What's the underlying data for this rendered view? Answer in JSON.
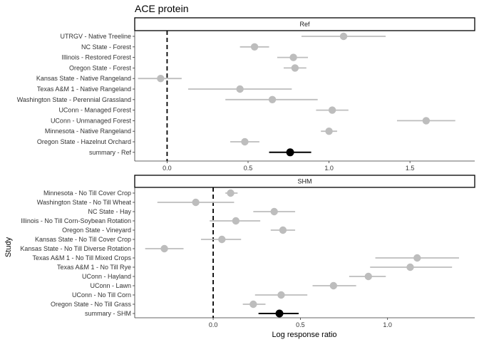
{
  "chart_data": {
    "type": "forest",
    "title": "ACE protein",
    "xlabel": "Log response ratio",
    "ylabel": "Study",
    "grid": false,
    "reference_line": 0,
    "colors": {
      "study": "#bdbdbd",
      "summary": "#000000",
      "strip_fill": "#ffffff",
      "strip_border": "#000000"
    },
    "panels": [
      {
        "name": "Ref",
        "xlim": [
          -0.2,
          1.9
        ],
        "xticks": [
          0.0,
          0.5,
          1.0,
          1.5
        ],
        "xtick_labels": [
          "0.0",
          "0.5",
          "1.0",
          "1.5"
        ],
        "studies": [
          {
            "label": "UTRGV - Native Treeline",
            "estimate": 1.09,
            "lower": 0.83,
            "upper": 1.35
          },
          {
            "label": "NC State - Forest",
            "estimate": 0.54,
            "lower": 0.45,
            "upper": 0.63
          },
          {
            "label": "Illinois - Restored Forest",
            "estimate": 0.78,
            "lower": 0.68,
            "upper": 0.87
          },
          {
            "label": "Oregon State - Forest",
            "estimate": 0.79,
            "lower": 0.72,
            "upper": 0.86
          },
          {
            "label": "Kansas State - Native Rangeland",
            "estimate": -0.04,
            "lower": -0.18,
            "upper": 0.09
          },
          {
            "label": "Texas A&M 1 - Native Rangeland",
            "estimate": 0.45,
            "lower": 0.13,
            "upper": 0.77
          },
          {
            "label": "Washington State - Perennial Grassland",
            "estimate": 0.65,
            "lower": 0.36,
            "upper": 0.93
          },
          {
            "label": "UConn - Managed Forest",
            "estimate": 1.02,
            "lower": 0.92,
            "upper": 1.12
          },
          {
            "label": "UConn - Unmanaged Forest",
            "estimate": 1.6,
            "lower": 1.42,
            "upper": 1.78
          },
          {
            "label": "Minnesota - Native Rangeland",
            "estimate": 1.0,
            "lower": 0.95,
            "upper": 1.05
          },
          {
            "label": "Oregon State - Hazelnut Orchard",
            "estimate": 0.48,
            "lower": 0.39,
            "upper": 0.57
          },
          {
            "label": "summary - Ref",
            "estimate": 0.76,
            "lower": 0.63,
            "upper": 0.89,
            "summary": true
          }
        ]
      },
      {
        "name": "SHM",
        "xlim": [
          -0.45,
          1.5
        ],
        "xticks": [
          0.0,
          0.5,
          1.0
        ],
        "xtick_labels": [
          "0.0",
          "0.5",
          "1.0"
        ],
        "studies": [
          {
            "label": "Minnesota - No Till Cover Crop",
            "estimate": 0.1,
            "lower": 0.07,
            "upper": 0.14
          },
          {
            "label": "Washington State - No Till Wheat",
            "estimate": -0.1,
            "lower": -0.32,
            "upper": 0.12
          },
          {
            "label": "NC State - Hay",
            "estimate": 0.35,
            "lower": 0.23,
            "upper": 0.47
          },
          {
            "label": "Illinois - No Till Corn-Soybean Rotation",
            "estimate": 0.13,
            "lower": -0.02,
            "upper": 0.27
          },
          {
            "label": "Oregon State - Vineyard",
            "estimate": 0.4,
            "lower": 0.33,
            "upper": 0.47
          },
          {
            "label": "Kansas State - No Till Cover Crop",
            "estimate": 0.05,
            "lower": -0.07,
            "upper": 0.16
          },
          {
            "label": "Kansas State - No Till Diverse Rotation",
            "estimate": -0.28,
            "lower": -0.39,
            "upper": -0.17
          },
          {
            "label": "Texas A&M 1 - No Till Mixed Crops",
            "estimate": 1.17,
            "lower": 0.93,
            "upper": 1.41
          },
          {
            "label": "Texas A&M 1 - No Till Rye",
            "estimate": 1.13,
            "lower": 0.9,
            "upper": 1.37
          },
          {
            "label": "UConn - Hayland",
            "estimate": 0.89,
            "lower": 0.78,
            "upper": 0.99
          },
          {
            "label": "UConn - Lawn",
            "estimate": 0.69,
            "lower": 0.57,
            "upper": 0.82
          },
          {
            "label": "UConn - No Till Corn",
            "estimate": 0.39,
            "lower": 0.24,
            "upper": 0.54
          },
          {
            "label": "Oregon State - No Till Grass",
            "estimate": 0.23,
            "lower": 0.17,
            "upper": 0.3
          },
          {
            "label": "summary - SHM",
            "estimate": 0.38,
            "lower": 0.26,
            "upper": 0.49,
            "summary": true
          }
        ]
      }
    ]
  }
}
